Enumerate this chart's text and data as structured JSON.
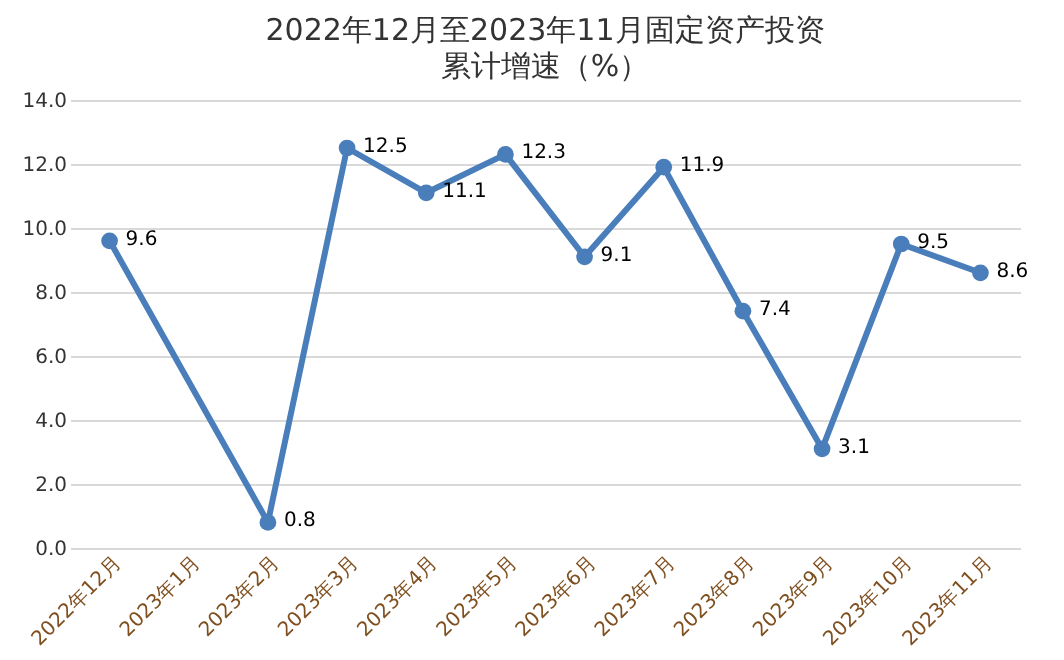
{
  "chart_data": {
    "type": "line",
    "title": "2022年12月至2023年11月固定资产投资",
    "subtitle": "累计增速（%）",
    "categories": [
      "2022年12月",
      "2023年1月",
      "2023年2月",
      "2023年3月",
      "2023年4月",
      "2023年5月",
      "2023年6月",
      "2023年7月",
      "2023年8月",
      "2023年9月",
      "2023年10月",
      "2023年11月"
    ],
    "series": [
      {
        "color": "#4a7ebb",
        "values": [
          9.6,
          null,
          0.8,
          12.5,
          11.1,
          12.3,
          9.1,
          11.9,
          7.4,
          3.1,
          9.5,
          8.6
        ]
      }
    ],
    "ylim": [
      0,
      14
    ],
    "yticks": [
      {
        "value": 0,
        "label": "0.0"
      },
      {
        "value": 2,
        "label": "2.0"
      },
      {
        "value": 4,
        "label": "4.0"
      },
      {
        "value": 6,
        "label": "6.0"
      },
      {
        "value": 8,
        "label": "8.0"
      },
      {
        "value": 10,
        "label": "10.0"
      },
      {
        "value": 12,
        "label": "12.0"
      },
      {
        "value": 14,
        "label": "14.0"
      }
    ],
    "grid": "y",
    "marker": "circle",
    "line_style": "solid",
    "data_labels": true
  }
}
